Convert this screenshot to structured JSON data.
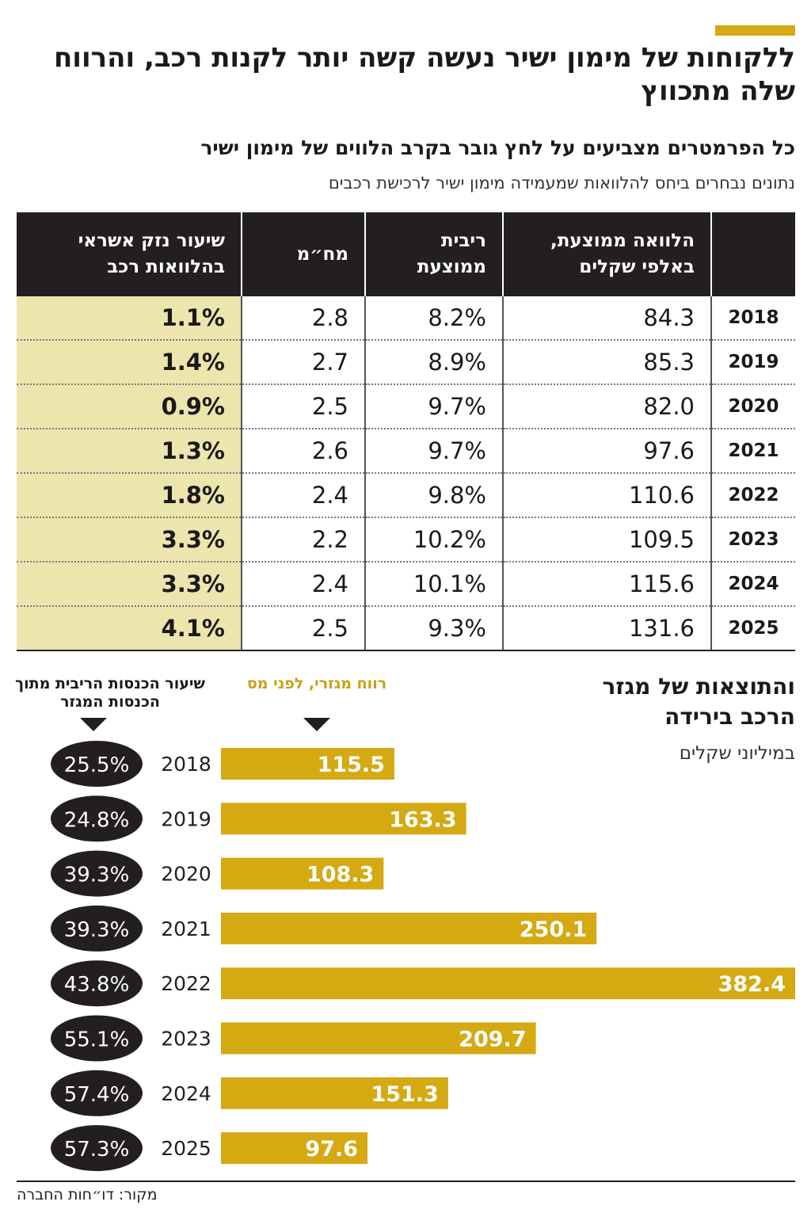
{
  "title": "ללקוחות של מימון ישיר נעשה קשה יותר לקנות רכב, והרווח שלה מתכווץ",
  "subtitle": "כל הפרמטרים מצביעים על לחץ גובר בקרב הלווים של מימון ישיר",
  "subsubtitle": "נתונים נבחרים ביחס להלוואות שמעמידה מימון ישיר לרכישת רכבים",
  "colors": {
    "accent": "#d4a912",
    "bar": "#d4a912",
    "dark": "#231f20",
    "highlight": "#ece5ad"
  },
  "table": {
    "headers": [
      "",
      "הלוואה ממוצעת, באלפי שקלים",
      "ריבית ממוצעת",
      "מח״מ",
      "שיעור נזק אשראי בהלוואות רכב"
    ],
    "rows": [
      [
        "2018",
        "84.3",
        "8.2%",
        "2.8",
        "1.1%"
      ],
      [
        "2019",
        "85.3",
        "8.9%",
        "2.7",
        "1.4%"
      ],
      [
        "2020",
        "82.0",
        "9.7%",
        "2.5",
        "0.9%"
      ],
      [
        "2021",
        "97.6",
        "9.7%",
        "2.6",
        "1.3%"
      ],
      [
        "2022",
        "110.6",
        "9.8%",
        "2.4",
        "1.8%"
      ],
      [
        "2023",
        "109.5",
        "10.2%",
        "2.2",
        "3.3%"
      ],
      [
        "2024",
        "115.6",
        "10.1%",
        "2.4",
        "3.3%"
      ],
      [
        "2025",
        "131.6",
        "9.3%",
        "2.5",
        "4.1%"
      ]
    ]
  },
  "chart": {
    "title": "והתוצאות של מגזר הרכב בירידה",
    "unit": "במיליוני שקלים",
    "legend_bar": "רווח מגזרי, לפני מס",
    "legend_ellipse": "שיעור הכנסות הריבית מתוך הכנסות המגזר"
  },
  "chart_data": {
    "type": "bar",
    "orientation": "horizontal",
    "categories": [
      "2018",
      "2019",
      "2020",
      "2021",
      "2022",
      "2023",
      "2024",
      "2025"
    ],
    "series": [
      {
        "name": "רווח מגזרי, לפני מס",
        "values": [
          115.5,
          163.3,
          108.3,
          250.1,
          382.4,
          209.7,
          151.3,
          97.6
        ]
      },
      {
        "name": "שיעור הכנסות הריבית מתוך הכנסות המגזר",
        "values": [
          "25.5%",
          "24.8%",
          "39.3%",
          "39.3%",
          "43.8%",
          "55.1%",
          "57.4%",
          "57.3%"
        ]
      }
    ],
    "value_labels": [
      "115.5",
      "163.3",
      "108.3",
      "250.1",
      "382.4",
      "209.7",
      "151.3",
      "97.6"
    ],
    "xlim": [
      0,
      382.4
    ]
  },
  "source": "מקור: דו״חות החברה"
}
